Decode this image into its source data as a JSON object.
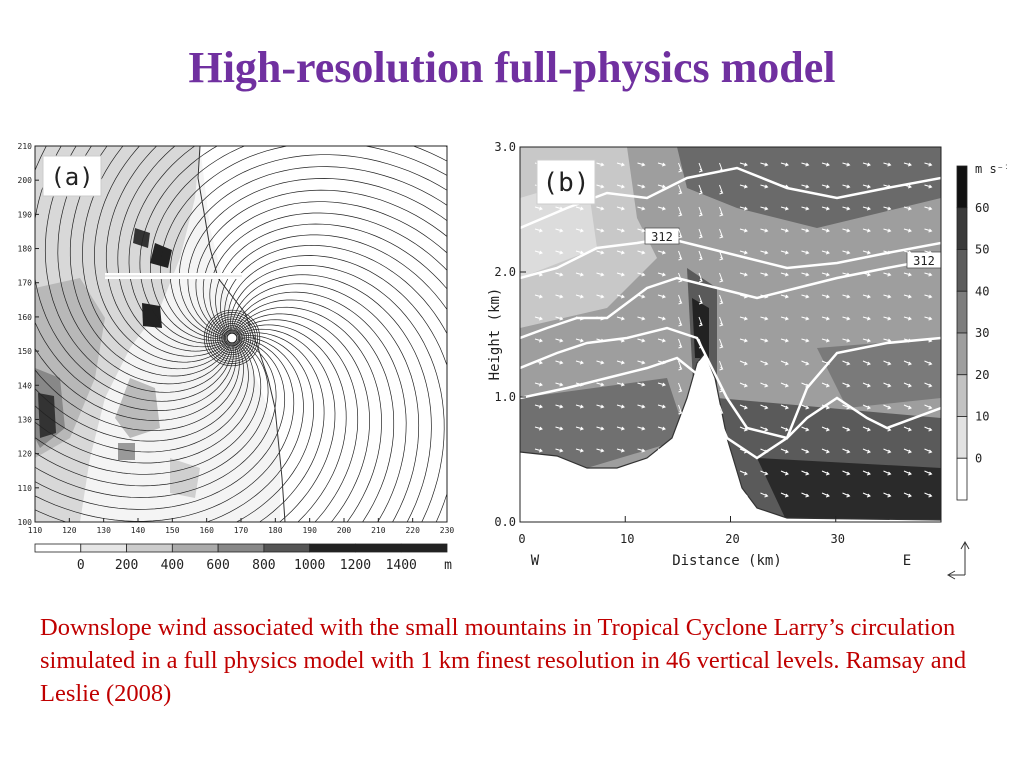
{
  "slide": {
    "title": "High-resolution full-physics model",
    "caption": "Downslope wind associated with the small mountains in Tropical Cyclone Larry’s circulation simulated in a full physics model with 1 km finest resolution in 46 vertical levels.",
    "reference": "Ramsay and Leslie (2008)"
  },
  "figure_a": {
    "panel_label": "(a)",
    "y_ticks": [
      "210",
      "200",
      "190",
      "180",
      "170",
      "160",
      "150",
      "140",
      "130",
      "120",
      "110",
      "100"
    ],
    "x_ticks": [
      "110",
      "120",
      "130",
      "140",
      "150",
      "160",
      "170",
      "180",
      "190",
      "200",
      "210",
      "220",
      "230"
    ],
    "colorbar_ticks": [
      "0",
      "200",
      "400",
      "600",
      "800",
      "1000",
      "1200",
      "1400"
    ],
    "colorbar_unit": "m",
    "colorbar_colors": [
      "#ffffff",
      "#e6e6e6",
      "#cccccc",
      "#aaaaaa",
      "#888888",
      "#555555",
      "#222222",
      "#222222",
      "#222222"
    ]
  },
  "figure_b": {
    "panel_label": "(b)",
    "ylabel": "Height (km)",
    "xlabel": "Distance (km)",
    "y_ticks": [
      "3.0",
      "2.0",
      "1.0",
      "0.0"
    ],
    "x_ticks": [
      "0",
      "10",
      "20",
      "30"
    ],
    "west_label": "W",
    "east_label": "E",
    "contour_label_1": "312",
    "contour_label_2": "312",
    "colorbar_unit": "m s⁻¹",
    "colorbar_ticks": [
      "60",
      "50",
      "40",
      "30",
      "20",
      "10",
      "0"
    ],
    "colorbar_colors": [
      "#111111",
      "#3a3a3a",
      "#5c5c5c",
      "#7d7d7d",
      "#9e9e9e",
      "#c2c2c2",
      "#e2e2e2",
      "#ffffff"
    ]
  }
}
